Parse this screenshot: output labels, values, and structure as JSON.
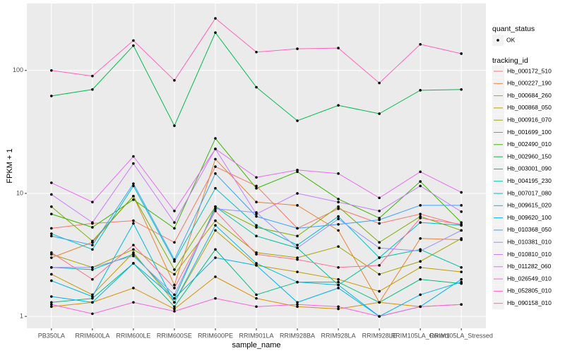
{
  "chart_data": {
    "type": "line",
    "x_label": "sample_name",
    "y_label": "FPKM + 1",
    "log_scale": true,
    "grid": true,
    "point_color": "#000000",
    "shape_legend_title": "quant_status",
    "shape_legend_labels": [
      "OK"
    ],
    "color_legend_title": "tracking_id",
    "categories": [
      "PB350LA",
      "RRIM600LA",
      "RRIM600LE",
      "RRIM600SE",
      "RRIM600PE",
      "RRIM901LA",
      "RRIM928BA",
      "RRIM928LA",
      "RRIM928LE",
      "RRIM105LA_Control",
      "RRIM105LA_Stressed"
    ],
    "ylim": [
      0.8,
      350
    ],
    "yticks": [
      1,
      10,
      100
    ],
    "series": [
      {
        "name": "Hb_000172_510",
        "color": "#F8766D",
        "values": [
          5.2,
          5.7,
          6.0,
          4.0,
          16.5,
          11.5,
          5.2,
          7.5,
          5.7,
          6.8,
          5.5
        ]
      },
      {
        "name": "Hb_000227_190",
        "color": "#EA8331",
        "values": [
          3.0,
          4.0,
          9.5,
          1.8,
          19,
          8.5,
          8.0,
          5.0,
          1.3,
          4.3,
          4.2
        ]
      },
      {
        "name": "Hb_000684_260",
        "color": "#D89000",
        "values": [
          1.2,
          1.3,
          1.7,
          1.15,
          2.1,
          1.4,
          1.2,
          1.15,
          1.3,
          1.2,
          1.25
        ]
      },
      {
        "name": "Hb_000868_050",
        "color": "#C09B00",
        "values": [
          2.2,
          1.5,
          3.3,
          1.3,
          5.0,
          2.6,
          2.3,
          2.0,
          1.6,
          2.5,
          2.3
        ]
      },
      {
        "name": "Hb_000916_070",
        "color": "#A3A500",
        "values": [
          3.2,
          2.5,
          3.5,
          2.2,
          6.0,
          3.3,
          3.0,
          3.7,
          2.2,
          2.8,
          4.3
        ]
      },
      {
        "name": "Hb_001699_100",
        "color": "#7CAE00",
        "values": [
          7.8,
          4.1,
          9.5,
          2.4,
          7.8,
          5.3,
          4.5,
          7.8,
          4.0,
          6.5,
          5.0
        ]
      },
      {
        "name": "Hb_002490_010",
        "color": "#39B600",
        "values": [
          6.8,
          5.3,
          8.9,
          5.2,
          28,
          11.0,
          15.0,
          9.0,
          6.3,
          12.5,
          5.8
        ]
      },
      {
        "name": "Hb_002960_150",
        "color": "#00BB4E",
        "values": [
          62,
          70,
          159,
          35.5,
          203,
          73,
          39,
          52,
          44.5,
          69,
          70
        ]
      },
      {
        "name": "Hb_003001_090",
        "color": "#00BF7D",
        "values": [
          1.3,
          1.4,
          2.7,
          1.2,
          3.5,
          1.5,
          1.9,
          1.9,
          1.3,
          2.0,
          1.85
        ]
      },
      {
        "name": "Hb_004195_230",
        "color": "#00C1A3",
        "values": [
          2.5,
          2.4,
          3.2,
          1.4,
          7.8,
          4.5,
          3.6,
          1.8,
          3.0,
          3.5,
          2.5
        ]
      },
      {
        "name": "Hb_007017_080",
        "color": "#00BFC4",
        "values": [
          4.7,
          3.5,
          11.5,
          2.8,
          11,
          5.5,
          3.8,
          6.5,
          3.0,
          5.8,
          5.5
        ]
      },
      {
        "name": "Hb_009615_020",
        "color": "#00BAE0",
        "values": [
          1.95,
          1.45,
          5.7,
          1.3,
          5.5,
          2.7,
          1.9,
          1.8,
          1.0,
          1.5,
          1.9
        ]
      },
      {
        "name": "Hb_009620_100",
        "color": "#00B0F6",
        "values": [
          1.45,
          1.3,
          2.7,
          1.4,
          3.0,
          2.6,
          1.3,
          1.7,
          1.0,
          1.2,
          2.0
        ]
      },
      {
        "name": "Hb_010368_050",
        "color": "#35A2FF",
        "values": [
          4.5,
          3.8,
          12.0,
          2.9,
          14.5,
          6.5,
          5.2,
          5.6,
          6.1,
          8.0,
          8.0
        ]
      },
      {
        "name": "Hb_010381_010",
        "color": "#9590FF",
        "values": [
          2.5,
          2.5,
          3.1,
          1.5,
          7.5,
          7.0,
          3.6,
          6.2,
          3.6,
          3.4,
          5.0
        ]
      },
      {
        "name": "Hb_010810_010",
        "color": "#C77CFF",
        "values": [
          9.8,
          5.8,
          17.5,
          5.8,
          23,
          6.8,
          10.0,
          8.5,
          7.2,
          11.5,
          7.1
        ]
      },
      {
        "name": "Hb_011282_060",
        "color": "#E76BF3",
        "values": [
          12.2,
          8.5,
          20,
          7.2,
          23,
          13.5,
          15.5,
          14.5,
          9.2,
          15,
          10.2
        ]
      },
      {
        "name": "Hb_026549_010",
        "color": "#FA62DB",
        "values": [
          1.25,
          1.05,
          1.3,
          1.1,
          1.4,
          1.2,
          1.25,
          1.2,
          1.0,
          1.2,
          1.25
        ]
      },
      {
        "name": "Hb_052805_010",
        "color": "#FF62BC",
        "values": [
          100,
          90,
          175,
          83,
          265,
          141,
          150,
          152,
          79,
          163,
          137
        ]
      },
      {
        "name": "Hb_090158_010",
        "color": "#FF6C91",
        "values": [
          3.3,
          2.0,
          3.8,
          1.7,
          7.2,
          3.2,
          2.9,
          2.5,
          2.6,
          6.3,
          5.6
        ]
      }
    ]
  }
}
